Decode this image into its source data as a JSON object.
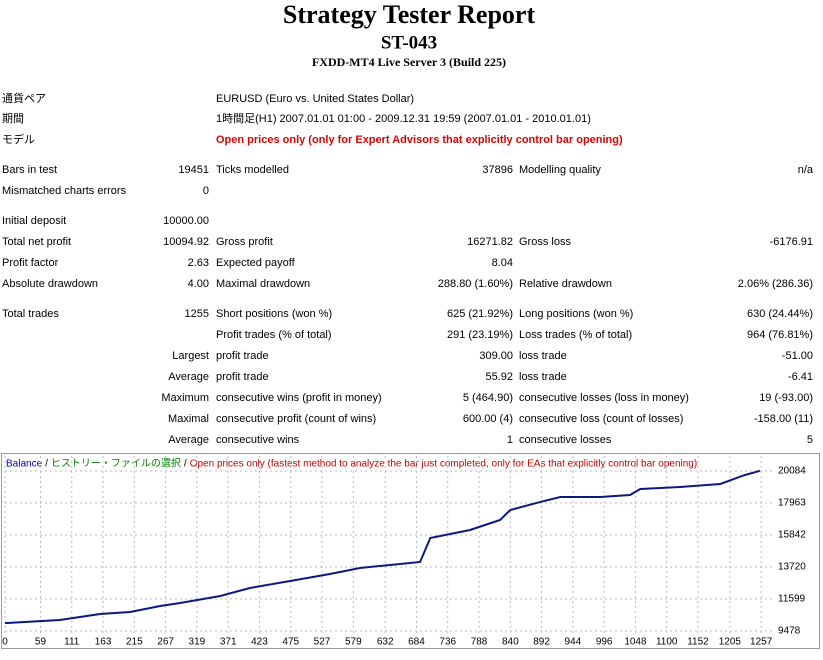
{
  "header": {
    "title": "Strategy Tester Report",
    "subtitle": "ST-043",
    "server": "FXDD-MT4 Live Server 3 (Build 225)"
  },
  "table": {
    "rows": [
      [
        "通貨ペア",
        null,
        "EURUSD (Euro vs. United States Dollar)"
      ],
      [
        "期間",
        null,
        "1時間足(H1) 2007.01.01 01:00 - 2009.12.31 19:59 (2007.01.01 - 2010.01.01)"
      ],
      [
        "モデル",
        null,
        "Open prices only (only for Expert Advisors that explicitly control bar opening)"
      ],
      [
        "Bars in test",
        "19451",
        "Ticks modelled",
        "37896",
        "Modelling quality",
        "n/a"
      ],
      [
        "Mismatched charts errors",
        "0"
      ],
      [
        "Initial deposit",
        "10000.00"
      ],
      [
        "Total net profit",
        "10094.92",
        "Gross profit",
        "16271.82",
        "Gross loss",
        "-6176.91"
      ],
      [
        "Profit factor",
        "2.63",
        "Expected payoff",
        "8.04"
      ],
      [
        "Absolute drawdown",
        "4.00",
        "Maximal drawdown",
        "288.80 (1.60%)",
        "Relative drawdown",
        "2.06% (286.36)"
      ],
      [
        "Total trades",
        "1255",
        "Short positions (won %)",
        "625 (21.92%)",
        "Long positions (won %)",
        "630 (24.44%)"
      ],
      [
        null,
        null,
        "Profit trades (% of total)",
        "291 (23.19%)",
        "Loss trades (% of total)",
        "964 (76.81%)"
      ],
      [
        null,
        "Largest",
        "profit trade",
        "309.00",
        "loss trade",
        "-51.00"
      ],
      [
        null,
        "Average",
        "profit trade",
        "55.92",
        "loss trade",
        "-6.41"
      ],
      [
        null,
        "Maximum",
        "consecutive wins (profit in money)",
        "5 (464.90)",
        "consecutive losses (loss in money)",
        "19 (-93.00)"
      ],
      [
        null,
        "Maximal",
        "consecutive profit (count of wins)",
        "600.00 (4)",
        "consecutive loss (count of losses)",
        "-158.00 (11)"
      ],
      [
        null,
        "Average",
        "consecutive wins",
        "1",
        "consecutive losses",
        "5"
      ]
    ]
  },
  "chart_data": {
    "type": "line",
    "legend": [
      {
        "text": "Balance",
        "color": "#0000cc"
      },
      {
        "text": "ヒストリー・ファイルの選択",
        "color": "#008000"
      },
      {
        "text": "Open prices only (fastest method to analyze the bar just completed, only for EAs that explicitly control bar opening)",
        "color": "#cc0000"
      }
    ],
    "separator": "/",
    "series": [
      {
        "name": "Balance",
        "color": "#0a1a80",
        "x": [
          0,
          91,
          158,
          208,
          258,
          291,
          358,
          407,
          474,
          540,
          590,
          640,
          690,
          707,
          773,
          823,
          840,
          890,
          923,
          989,
          1039,
          1056,
          1122,
          1189,
          1230,
          1255
        ],
        "values": [
          10000,
          10207,
          10605,
          10738,
          11136,
          11334,
          11799,
          12329,
          12793,
          13257,
          13655,
          13854,
          14053,
          15644,
          16174,
          16837,
          17500,
          18031,
          18362,
          18362,
          18495,
          18893,
          19025,
          19224,
          19820,
          20094
        ]
      }
    ],
    "xlim": [
      0,
      1280
    ],
    "ylim": [
      9146,
      21078
    ],
    "xticks": [
      0,
      59,
      111,
      163,
      215,
      267,
      319,
      371,
      423,
      475,
      527,
      579,
      632,
      684,
      736,
      788,
      840,
      892,
      944,
      996,
      1048,
      1100,
      1152,
      1205,
      1257
    ],
    "yticks": [
      9478,
      11599,
      13720,
      15842,
      17963,
      20084
    ],
    "grid": true
  }
}
